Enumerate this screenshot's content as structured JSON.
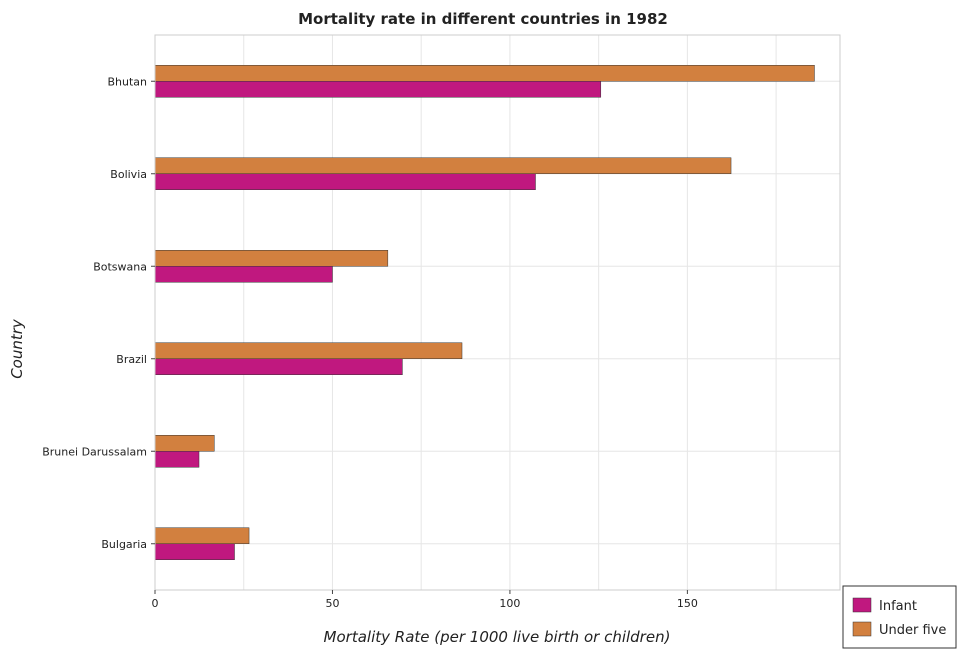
{
  "chart_data": {
    "type": "bar",
    "orientation": "horizontal",
    "title": "Mortality rate in different countries in 1982",
    "xlabel": "Mortality Rate (per 1000 live birth or children)",
    "ylabel": "Country",
    "categories": [
      "Bhutan",
      "Bolivia",
      "Botswana",
      "Brazil",
      "Brunei Darussalam",
      "Bulgaria"
    ],
    "series": [
      {
        "name": "Infant",
        "color": "#c0187f",
        "values": [
          125.6,
          107.2,
          50.0,
          69.7,
          12.4,
          22.4
        ]
      },
      {
        "name": "Under five",
        "color": "#d2803f",
        "values": [
          185.8,
          162.3,
          65.6,
          86.5,
          16.7,
          26.5
        ]
      }
    ],
    "xlim": [
      0,
      193
    ],
    "xticks": [
      0,
      50,
      100,
      150
    ],
    "grid": true,
    "legend_position": "bottom-right"
  }
}
